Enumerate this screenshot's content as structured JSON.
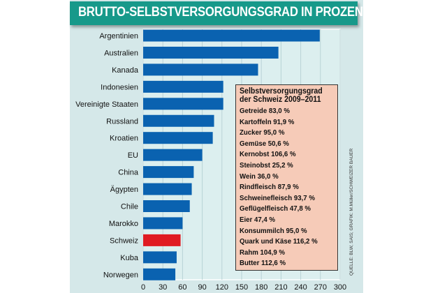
{
  "chart_data": {
    "type": "bar",
    "orientation": "horizontal",
    "title": "BRUTTO-SELBSTVERSORGUNGSGRAD IN PROZENT",
    "categories": [
      "Argentinien",
      "Australien",
      "Kanada",
      "Indonesien",
      "Vereinigte Staaten",
      "Russland",
      "Kroatien",
      "EU",
      "China",
      "Ägypten",
      "Chile",
      "Marokko",
      "Schweiz",
      "Kuba",
      "Norwegen"
    ],
    "values": [
      269,
      206,
      175,
      122,
      122,
      108,
      106,
      90,
      77,
      74,
      71,
      60,
      57,
      51,
      49
    ],
    "highlight": "Schweiz",
    "xlim": [
      0,
      300
    ],
    "xticks": [
      "0",
      "30",
      "60",
      "90",
      "120",
      "150",
      "180",
      "210",
      "240",
      "270",
      "300"
    ],
    "grid": true,
    "colors": {
      "bar": "#0a62b0",
      "highlight": "#e01b22",
      "title_bg": "#17998a",
      "background": "#d5e8e9",
      "legend_bg": "#f6cbb8"
    },
    "inset": {
      "title_line1": "Selbstversorgungsgrad",
      "title_line2": "der Schweiz 2009–2011",
      "items": [
        "Getreide 83,0 %",
        "Kartoffeln 91,9 %",
        "Zucker 95,0 %",
        "Gemüse 50,6 %",
        "Kernobst 106,6 %",
        "Steinobst 25,2 %",
        "Wein 36,0 %",
        "Rindfleisch 87,9 %",
        "Schweinefleisch 93,7 %",
        "Geflügelfleisch 47,8 %",
        "Eier 47,4 %",
        "Konsummilch 95,0 %",
        "Quark und Käse 116,2 %",
        "Rahm 104,9 %",
        "Butter 112,6 %"
      ]
    },
    "source": "QUELLE: BLW, SAIS; GRAFIK: M.Müller/SCHWEIZER BAUER"
  }
}
